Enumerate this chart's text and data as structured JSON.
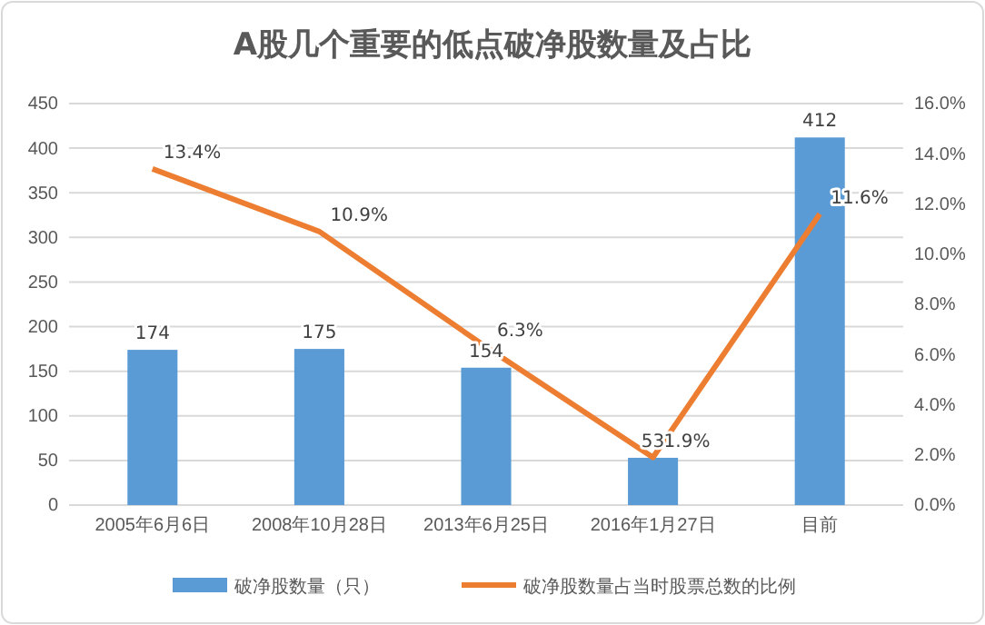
{
  "chart_data": {
    "type": "bar",
    "title": "A股几个重要的低点破净股数量及占比",
    "categories": [
      "2005年6月6日",
      "2008年10月28日",
      "2013年6月25日",
      "2016年1月27日",
      "目前"
    ],
    "series": [
      {
        "name": "破净股数量（只）",
        "color": "#5b9bd5",
        "values": [
          174,
          175,
          154,
          53,
          412
        ],
        "value_labels": [
          "174",
          "175",
          "154",
          "53",
          "412"
        ]
      },
      {
        "name": "破净股数量占当时股票总数的比例",
        "type": "line",
        "axis": "y2",
        "color": "#ed7d31",
        "values": [
          13.4,
          10.9,
          6.3,
          1.9,
          11.6
        ],
        "value_labels": [
          "13.4%",
          "10.9%",
          "6.3%",
          "1.9%",
          "11.6%"
        ]
      }
    ],
    "ylim": [
      0,
      450
    ],
    "yticks": [
      0,
      50,
      100,
      150,
      200,
      250,
      300,
      350,
      400,
      450
    ],
    "y2lim": [
      0,
      16
    ],
    "y2ticks": [
      {
        "value": 0,
        "label": "0.0%"
      },
      {
        "value": 2,
        "label": "2.0%"
      },
      {
        "value": 4,
        "label": "4.0%"
      },
      {
        "value": 6,
        "label": "6.0%"
      },
      {
        "value": 8,
        "label": "8.0%"
      },
      {
        "value": 10,
        "label": "10.0%"
      },
      {
        "value": 12,
        "label": "12.0%"
      },
      {
        "value": 14,
        "label": "14.0%"
      },
      {
        "value": 16,
        "label": "16.0%"
      }
    ],
    "grid": "y",
    "legend": "bottom",
    "line_style": "solid",
    "marker": "none"
  }
}
